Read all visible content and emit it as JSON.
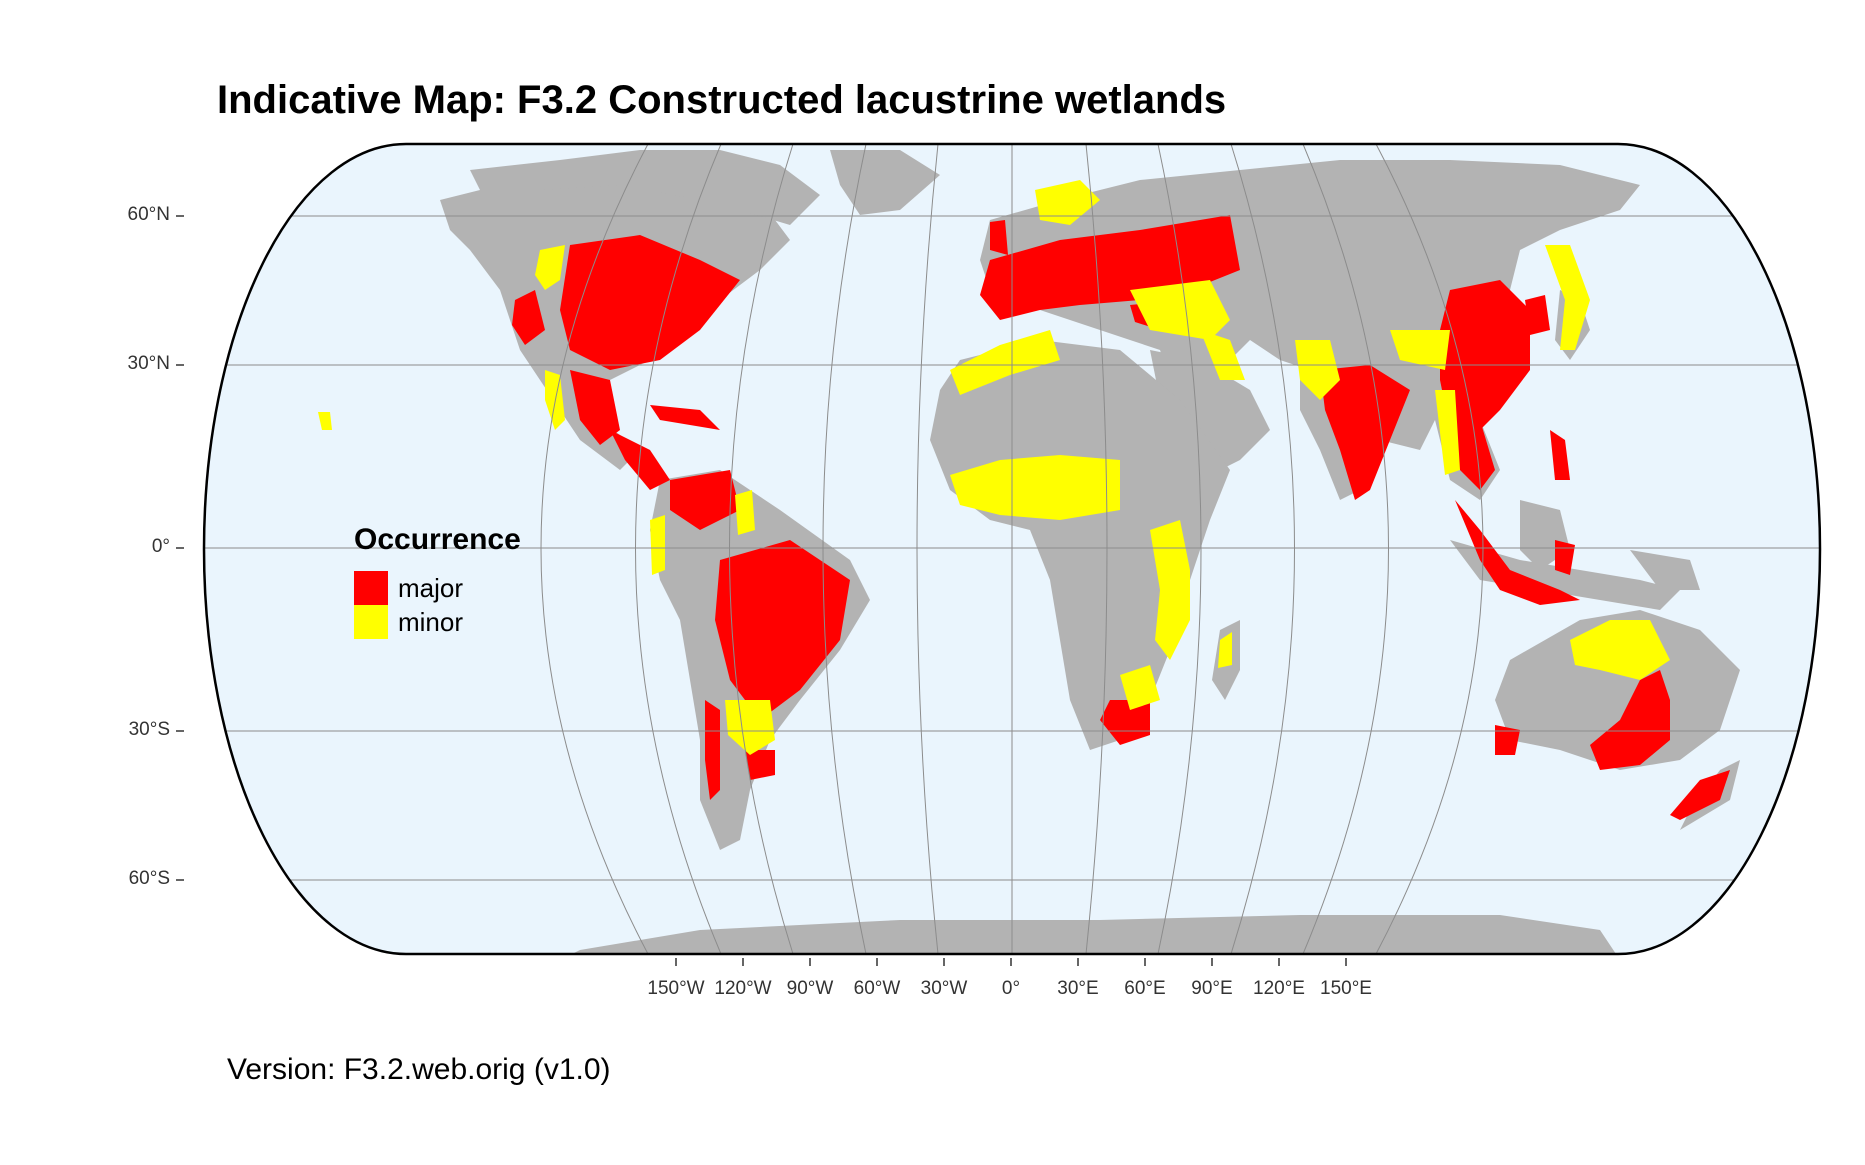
{
  "title": "Indicative Map: F3.2 Constructed lacustrine wetlands",
  "axes": {
    "lat_labels": [
      "60°N",
      "30°N",
      "0°",
      "30°S",
      "60°S"
    ],
    "lon_labels": [
      "150°W",
      "120°W",
      "90°W",
      "60°W",
      "30°W",
      "0°",
      "30°E",
      "60°E",
      "90°E",
      "120°E",
      "150°E"
    ]
  },
  "legend": {
    "title": "Occurrence",
    "items": [
      {
        "label": "major",
        "color": "#ff0000"
      },
      {
        "label": "minor",
        "color": "#ffff00"
      }
    ]
  },
  "caption": "Version: F3.2.web.orig (v1.0)",
  "colors": {
    "ocean": "#eaf5fd",
    "land": "#b3b3b3",
    "graticule": "#8c8c8c",
    "major": "#ff0000",
    "minor": "#ffff00"
  },
  "map": {
    "projection": "Robinson-like",
    "graticule": true
  }
}
